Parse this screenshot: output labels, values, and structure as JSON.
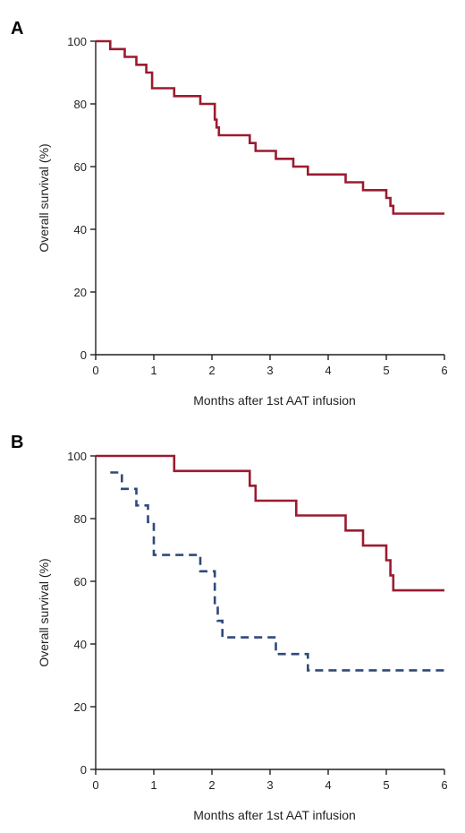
{
  "chart_data": [
    {
      "panel_label": "A",
      "type": "line",
      "step": true,
      "xlabel": "Months after 1st AAT infusion",
      "ylabel": "Overall survival (%)",
      "xlim": [
        0,
        6
      ],
      "ylim": [
        0,
        100
      ],
      "xticks": [
        "0",
        "1",
        "2",
        "3",
        "4",
        "5",
        "6"
      ],
      "yticks": [
        "0",
        "20",
        "40",
        "60",
        "80",
        "100"
      ],
      "grid": false,
      "series": [
        {
          "color": "#9b1b30",
          "dashed": false,
          "x": [
            0,
            0.25,
            0.5,
            0.7,
            0.87,
            0.97,
            1.35,
            1.8,
            2.05,
            2.08,
            2.12,
            2.18,
            2.65,
            2.75,
            3.1,
            3.4,
            3.65,
            4.3,
            4.6,
            5.0,
            5.07,
            5.12,
            6.0
          ],
          "y": [
            100,
            97.5,
            95,
            92.5,
            90,
            85,
            82.5,
            80,
            75,
            72.5,
            70,
            70,
            67.5,
            65,
            62.5,
            60,
            57.5,
            55,
            52.5,
            50,
            47.5,
            45,
            45
          ]
        }
      ]
    },
    {
      "panel_label": "B",
      "type": "line",
      "step": true,
      "xlabel": "Months after 1st AAT infusion",
      "ylabel": "Overall survival (%)",
      "xlim": [
        0,
        6
      ],
      "ylim": [
        0,
        100
      ],
      "xticks": [
        "0",
        "1",
        "2",
        "3",
        "4",
        "5",
        "6"
      ],
      "yticks": [
        "0",
        "20",
        "40",
        "60",
        "80",
        "100"
      ],
      "grid": false,
      "series": [
        {
          "color": "#9b1b30",
          "dashed": false,
          "x": [
            0,
            1.35,
            2.65,
            2.75,
            3.45,
            4.3,
            4.6,
            5.0,
            5.07,
            5.12,
            6.0
          ],
          "y": [
            100,
            95.2,
            90.5,
            85.7,
            81,
            76.2,
            71.4,
            66.7,
            61.9,
            57.1,
            57.1
          ]
        },
        {
          "color": "#2e4a7a",
          "dashed": true,
          "x": [
            0.25,
            0.45,
            0.7,
            0.9,
            1.0,
            1.8,
            2.05,
            2.1,
            2.18,
            3.1,
            3.65,
            6.0
          ],
          "y": [
            94.7,
            89.5,
            84.2,
            78.9,
            68.4,
            63.2,
            52.6,
            47.4,
            42.1,
            36.8,
            31.6,
            31.6
          ]
        }
      ]
    }
  ]
}
